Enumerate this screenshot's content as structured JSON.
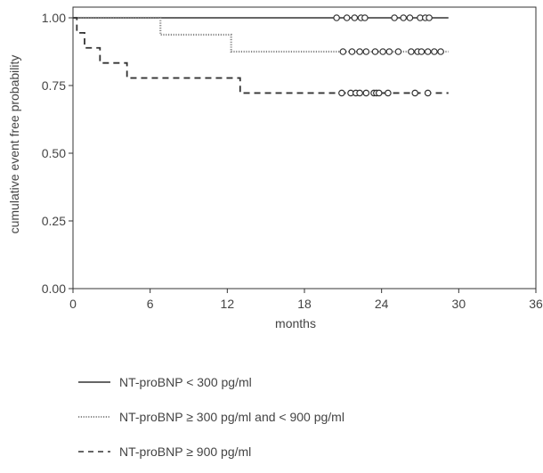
{
  "chart_data": {
    "type": "line",
    "subtype": "kaplan-meier",
    "title": "",
    "xlabel": "months",
    "ylabel": "cumulative event free probability",
    "xlim": [
      0,
      36
    ],
    "ylim": [
      0,
      1
    ],
    "x_ticks": [
      0,
      6,
      12,
      18,
      24,
      30,
      36
    ],
    "y_ticks": [
      0.0,
      0.25,
      0.5,
      0.75,
      1.0
    ],
    "x_tick_labels": [
      "0",
      "6",
      "12",
      "18",
      "24",
      "30",
      "36"
    ],
    "y_tick_labels": [
      "0.00",
      "0.25",
      "0.50",
      "0.75",
      "1.00"
    ],
    "grid": false,
    "legend_position": "bottom",
    "series": [
      {
        "name": "NT-proBNP < 300 pg/ml",
        "line_style": "solid",
        "color": "#333333",
        "steps": [
          [
            0,
            1.0
          ],
          [
            29.2,
            1.0
          ]
        ],
        "censored": [
          20.5,
          21.3,
          21.9,
          22.4,
          22.7,
          25.0,
          25.7,
          26.2,
          27.0,
          27.4,
          27.7
        ]
      },
      {
        "name": "NT-proBNP ≥ 300 pg/ml and < 900 pg/ml",
        "line_style": "dotted",
        "color": "#888888",
        "steps": [
          [
            0,
            1.0
          ],
          [
            6.8,
            0.9375
          ],
          [
            12.3,
            0.875
          ],
          [
            29.2,
            0.875
          ]
        ],
        "censored": [
          21.0,
          21.7,
          22.3,
          22.8,
          23.5,
          24.1,
          24.6,
          25.3,
          26.3,
          26.8,
          27.1,
          27.6,
          28.1,
          28.6
        ]
      },
      {
        "name": "NT-proBNP ≥ 900 pg/ml",
        "line_style": "dashed",
        "color": "#333333",
        "steps": [
          [
            0,
            1.0
          ],
          [
            0.3,
            0.9444
          ],
          [
            0.9,
            0.8889
          ],
          [
            2.1,
            0.8333
          ],
          [
            4.2,
            0.7778
          ],
          [
            13.0,
            0.7222
          ],
          [
            29.2,
            0.7222
          ]
        ],
        "censored": [
          20.9,
          21.6,
          22.0,
          22.3,
          22.8,
          23.4,
          23.6,
          23.8,
          24.5,
          26.6,
          27.6
        ]
      }
    ]
  }
}
